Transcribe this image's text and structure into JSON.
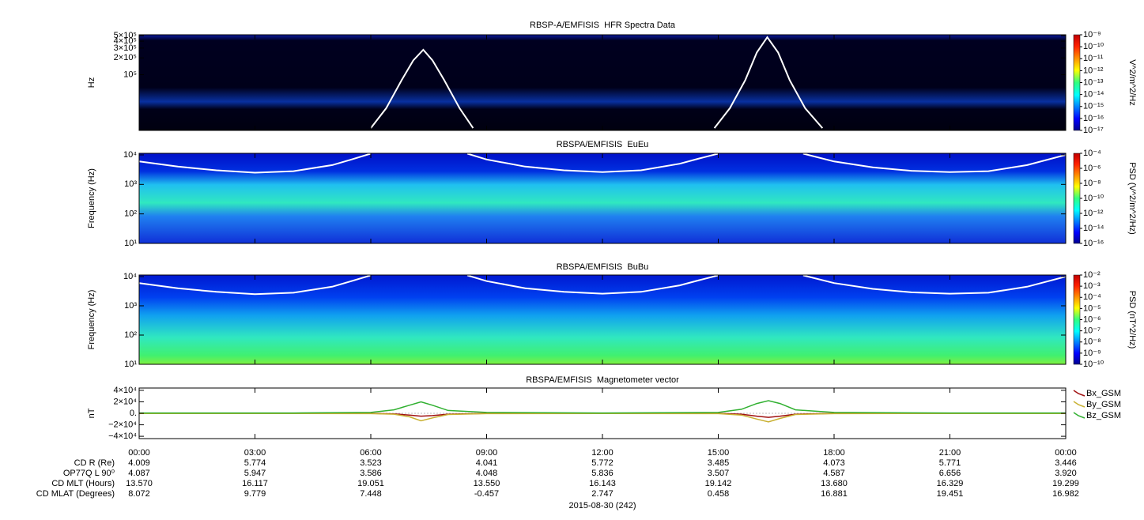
{
  "chart_data": [
    {
      "type": "spectrogram",
      "title": "RBSP-A/EMFISIS  HFR Spectra Data",
      "ylabel": "Hz",
      "yscale": "log",
      "xlim": [
        0,
        24
      ],
      "ylim": [
        10000,
        520000
      ],
      "yticks": [
        {
          "value": 500000,
          "label": "5×10⁵"
        },
        {
          "value": 400000,
          "label": "4×10⁵"
        },
        {
          "value": 300000,
          "label": "3×10⁵"
        },
        {
          "value": 200000,
          "label": "2×10⁵"
        },
        {
          "value": 100000,
          "label": "10⁵"
        }
      ],
      "colorbar": {
        "label": "V^2/m^2/Hz",
        "clim": [
          1e-17,
          1e-09
        ],
        "cticks": [
          {
            "value": 1e-09,
            "label": "10⁻⁹"
          },
          {
            "value": 1e-10,
            "label": "10⁻¹⁰"
          },
          {
            "value": 1e-11,
            "label": "10⁻¹¹"
          },
          {
            "value": 1e-12,
            "label": "10⁻¹²"
          },
          {
            "value": 1e-13,
            "label": "10⁻¹³"
          },
          {
            "value": 1e-14,
            "label": "10⁻¹⁴"
          },
          {
            "value": 1e-15,
            "label": "10⁻¹⁵"
          },
          {
            "value": 1e-16,
            "label": "10⁻¹⁶"
          },
          {
            "value": 1e-17,
            "label": "10⁻¹⁷"
          }
        ]
      },
      "line": {
        "color": "#ffffff",
        "x": [
          6.0,
          6.4,
          6.8,
          7.1,
          7.36,
          7.6,
          7.9,
          8.3,
          8.65,
          12,
          14.9,
          15.3,
          15.7,
          16.0,
          16.27,
          16.55,
          16.85,
          17.25,
          17.7
        ],
        "values": [
          11000,
          25000,
          80000,
          180000,
          280000,
          180000,
          80000,
          25000,
          11000,
          null,
          11000,
          25000,
          80000,
          250000,
          470000,
          250000,
          80000,
          25000,
          11000
        ]
      }
    },
    {
      "type": "spectrogram",
      "title": "RBSPA/EMFISIS  EuEu",
      "ylabel": "Frequency (Hz)",
      "yscale": "log",
      "xlim": [
        0,
        24
      ],
      "ylim": [
        10,
        11300
      ],
      "yticks": [
        {
          "value": 10000,
          "label": "10⁴"
        },
        {
          "value": 1000,
          "label": "10³"
        },
        {
          "value": 100,
          "label": "10²"
        },
        {
          "value": 10,
          "label": "10¹"
        }
      ],
      "colorbar": {
        "label": "PSD (V^2/m^2/Hz)",
        "clim": [
          1e-16,
          0.0001
        ],
        "cticks": [
          {
            "value": 0.0001,
            "label": "10⁻⁴"
          },
          {
            "value": 1e-06,
            "label": "10⁻⁶"
          },
          {
            "value": 1e-08,
            "label": "10⁻⁸"
          },
          {
            "value": 1e-10,
            "label": "10⁻¹⁰"
          },
          {
            "value": 1e-12,
            "label": "10⁻¹²"
          },
          {
            "value": 1e-14,
            "label": "10⁻¹⁴"
          },
          {
            "value": 1e-16,
            "label": "10⁻¹⁶"
          }
        ]
      },
      "line": {
        "color": "#ffffff",
        "x": [
          0,
          1,
          2,
          3,
          4,
          5,
          5.5,
          6,
          7.3,
          8.5,
          9,
          10,
          11,
          12,
          13,
          14,
          14.5,
          15,
          16.3,
          17.2,
          18,
          19,
          20,
          21,
          22,
          23,
          24
        ],
        "values": [
          6000,
          4000,
          3000,
          2500,
          2800,
          4500,
          7000,
          11000,
          null,
          11000,
          7000,
          4000,
          3000,
          2600,
          3000,
          5000,
          7500,
          11000,
          null,
          11000,
          6000,
          3800,
          2900,
          2600,
          2800,
          4500,
          10000
        ]
      }
    },
    {
      "type": "spectrogram",
      "title": "RBSPA/EMFISIS  BuBu",
      "ylabel": "Frequency (Hz)",
      "yscale": "log",
      "xlim": [
        0,
        24
      ],
      "ylim": [
        10,
        11300
      ],
      "yticks": [
        {
          "value": 10000,
          "label": "10⁴"
        },
        {
          "value": 1000,
          "label": "10³"
        },
        {
          "value": 100,
          "label": "10²"
        },
        {
          "value": 10,
          "label": "10¹"
        }
      ],
      "colorbar": {
        "label": "PSD (nT^2/Hz)",
        "clim": [
          1e-10,
          0.01
        ],
        "cticks": [
          {
            "value": 0.01,
            "label": "10⁻²"
          },
          {
            "value": 0.001,
            "label": "10⁻³"
          },
          {
            "value": 0.0001,
            "label": "10⁻⁴"
          },
          {
            "value": 1e-05,
            "label": "10⁻⁵"
          },
          {
            "value": 1e-06,
            "label": "10⁻⁶"
          },
          {
            "value": 1e-07,
            "label": "10⁻⁷"
          },
          {
            "value": 1e-08,
            "label": "10⁻⁸"
          },
          {
            "value": 1e-09,
            "label": "10⁻⁹"
          },
          {
            "value": 1e-10,
            "label": "10⁻¹⁰"
          }
        ]
      },
      "line": {
        "color": "#ffffff",
        "x": [
          0,
          1,
          2,
          3,
          4,
          5,
          5.5,
          6,
          7.3,
          8.5,
          9,
          10,
          11,
          12,
          13,
          14,
          14.5,
          15,
          16.3,
          17.2,
          18,
          19,
          20,
          21,
          22,
          23,
          24
        ],
        "values": [
          6000,
          4000,
          3000,
          2500,
          2800,
          4500,
          7000,
          11000,
          null,
          11000,
          7000,
          4000,
          3000,
          2600,
          3000,
          5000,
          7500,
          11000,
          null,
          11000,
          6000,
          3800,
          2900,
          2600,
          2800,
          4500,
          10000
        ]
      }
    },
    {
      "type": "line",
      "title": "RBSPA/EMFISIS  Magnetometer vector",
      "ylabel": "nT",
      "xlim": [
        0,
        24
      ],
      "ylim": [
        -44000,
        44000
      ],
      "yticks": [
        {
          "value": 40000,
          "label": "4×10⁴"
        },
        {
          "value": 20000,
          "label": "2×10⁴"
        },
        {
          "value": 0,
          "label": "0."
        },
        {
          "value": -20000,
          "label": "−2×10⁴"
        },
        {
          "value": -40000,
          "label": "−4×10⁴"
        }
      ],
      "xticks": [
        {
          "value": 0,
          "label": "00:00"
        },
        {
          "value": 3,
          "label": "03:00"
        },
        {
          "value": 6,
          "label": "06:00"
        },
        {
          "value": 9,
          "label": "09:00"
        },
        {
          "value": 12,
          "label": "12:00"
        },
        {
          "value": 15,
          "label": "15:00"
        },
        {
          "value": 18,
          "label": "18:00"
        },
        {
          "value": 21,
          "label": "21:00"
        },
        {
          "value": 24,
          "label": "00:00"
        }
      ],
      "x": [
        0,
        2,
        4,
        6,
        6.6,
        7,
        7.3,
        7.6,
        8,
        9,
        12,
        15,
        15.6,
        16,
        16.3,
        16.6,
        17,
        18,
        21,
        24
      ],
      "series": [
        {
          "name": "Bx_GSM",
          "color": "#a01010",
          "values": [
            0,
            0,
            0,
            -200,
            -1000,
            -3000,
            -5000,
            -4000,
            -1500,
            -200,
            0,
            -200,
            -1500,
            -5000,
            -7000,
            -5000,
            -1500,
            -200,
            0,
            0
          ]
        },
        {
          "name": "By_GSM",
          "color": "#c8b030",
          "values": [
            -300,
            -300,
            -300,
            -500,
            -1500,
            -6000,
            -13000,
            -8000,
            -2000,
            -500,
            -300,
            -500,
            -3000,
            -10000,
            -15000,
            -9000,
            -2000,
            -500,
            -300,
            -300
          ]
        },
        {
          "name": "Bz_GSM",
          "color": "#30b030",
          "values": [
            600,
            500,
            600,
            1500,
            6000,
            14000,
            20000,
            14000,
            5000,
            1500,
            500,
            1500,
            7000,
            17000,
            22000,
            17000,
            6000,
            1500,
            500,
            600
          ]
        }
      ]
    }
  ],
  "ephemeris": {
    "rows": [
      {
        "label": "CD R (Re)",
        "values": [
          "4.009",
          "5.774",
          "3.523",
          "4.041",
          "5.772",
          "3.485",
          "4.073",
          "5.771",
          "3.446"
        ]
      },
      {
        "label": "OP77Q L 90⁰",
        "values": [
          "4.087",
          "5.947",
          "3.586",
          "4.048",
          "5.836",
          "3.507",
          "4.587",
          "6.656",
          "3.920"
        ]
      },
      {
        "label": "CD MLT (Hours)",
        "values": [
          "13.570",
          "16.117",
          "19.051",
          "13.550",
          "16.143",
          "19.142",
          "13.680",
          "16.329",
          "19.299"
        ]
      },
      {
        "label": "CD MLAT (Degrees)",
        "values": [
          "8.072",
          "9.779",
          "7.448",
          "-0.457",
          "2.747",
          "0.458",
          "16.881",
          "19.451",
          "16.982"
        ]
      }
    ],
    "date": "2015-08-30 (242)"
  }
}
